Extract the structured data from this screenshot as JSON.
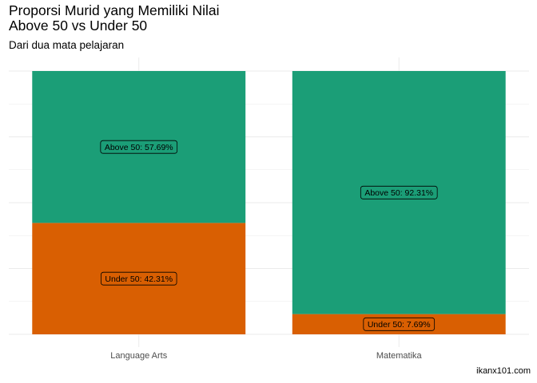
{
  "chart_data": {
    "type": "bar",
    "stacked": true,
    "title_lines": [
      "Proporsi Murid yang Memiliki Nilai",
      "Above 50 vs Under 50"
    ],
    "subtitle": "Dari dua mata pelajaran",
    "caption": "ikanx101.com",
    "xlabel": "",
    "ylabel": "",
    "ylim": [
      0,
      1
    ],
    "grid": true,
    "legend": "none",
    "categories": [
      "Language Arts",
      "Matematika"
    ],
    "series": [
      {
        "key": "above",
        "color": "#1b9e77",
        "values": [
          0.5769,
          0.9231
        ],
        "labels": [
          "Above 50: 57.69%",
          "Above 50: 92.31%"
        ]
      },
      {
        "key": "under",
        "color": "#d95f02",
        "values": [
          0.4231,
          0.0769
        ],
        "labels": [
          "Under 50: 42.31%",
          "Under 50: 7.69%"
        ]
      }
    ]
  }
}
